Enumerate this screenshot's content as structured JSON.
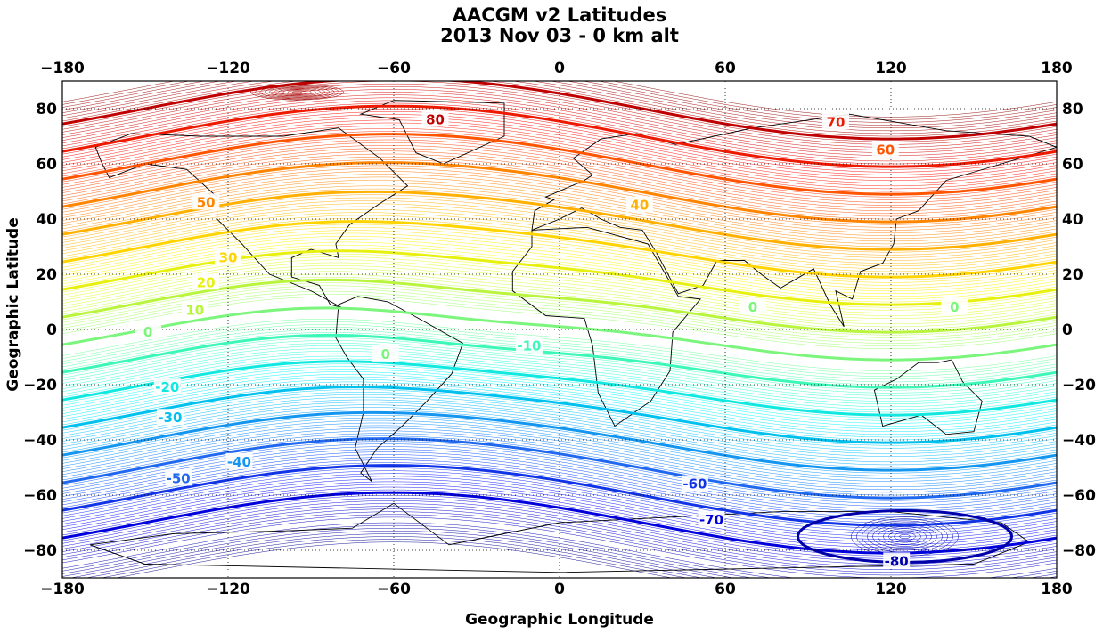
{
  "chart_data": {
    "type": "contour",
    "title": [
      "AACGM v2 Latitudes",
      "2013 Nov 03 - 0 km alt"
    ],
    "xlabel": "Geographic Longitude",
    "ylabel": "Geographic Latitude",
    "xlim": [
      -180,
      180
    ],
    "ylim": [
      -90,
      90
    ],
    "xticks": [
      -180,
      -120,
      -60,
      0,
      60,
      120,
      180
    ],
    "yticks": [
      -80,
      -60,
      -40,
      -20,
      0,
      20,
      40,
      60,
      80
    ],
    "xtick_labels": [
      "−180",
      "−120",
      "−60",
      "0",
      "60",
      "120",
      "180"
    ],
    "ytick_labels": [
      "−80",
      "−60",
      "−40",
      "−20",
      "0",
      "20",
      "40",
      "60",
      "80"
    ],
    "grid": true,
    "grid_style": "dotted",
    "colormap": "jet",
    "major_levels": [
      -80,
      -70,
      -60,
      -50,
      -40,
      -30,
      -20,
      -10,
      0,
      10,
      20,
      30,
      40,
      50,
      60,
      70,
      80
    ],
    "level_colors": {
      "-80": "#0000aa",
      "-70": "#0000dd",
      "-60": "#1034e6",
      "-50": "#1f68ef",
      "-40": "#1496f0",
      "-30": "#00c0ee",
      "-20": "#10e8e0",
      "-10": "#3cf7b8",
      "0": "#7cf57c",
      "10": "#b8f53c",
      "20": "#e8f010",
      "30": "#ffd400",
      "40": "#ffb000",
      "50": "#ff8400",
      "60": "#ff5500",
      "70": "#ee1a00",
      "80": "#c00000"
    },
    "contour_labels": [
      {
        "text": "80",
        "lon": -45,
        "lat": 76
      },
      {
        "text": "70",
        "lon": 100,
        "lat": 75
      },
      {
        "text": "60",
        "lon": 118,
        "lat": 65
      },
      {
        "text": "50",
        "lon": -128,
        "lat": 46
      },
      {
        "text": "40",
        "lon": 29,
        "lat": 45
      },
      {
        "text": "30",
        "lon": -120,
        "lat": 26
      },
      {
        "text": "20",
        "lon": -128,
        "lat": 17
      },
      {
        "text": "10",
        "lon": -132,
        "lat": 7
      },
      {
        "text": "0",
        "lon": -149,
        "lat": -1
      },
      {
        "text": "0",
        "lon": -63,
        "lat": -9
      },
      {
        "text": "0",
        "lon": 70,
        "lat": 8
      },
      {
        "text": "0",
        "lon": 143,
        "lat": 8
      },
      {
        "text": "-10",
        "lon": -11,
        "lat": -6
      },
      {
        "text": "-20",
        "lon": -142,
        "lat": -21
      },
      {
        "text": "-30",
        "lon": -141,
        "lat": -32
      },
      {
        "text": "-40",
        "lon": -116,
        "lat": -48
      },
      {
        "text": "-50",
        "lon": -138,
        "lat": -54
      },
      {
        "text": "-60",
        "lon": 49,
        "lat": -56
      },
      {
        "text": "-70",
        "lon": 55,
        "lat": -69
      },
      {
        "text": "-80",
        "lon": 122,
        "lat": -84
      }
    ],
    "coastlines": "World coastlines (black)"
  }
}
